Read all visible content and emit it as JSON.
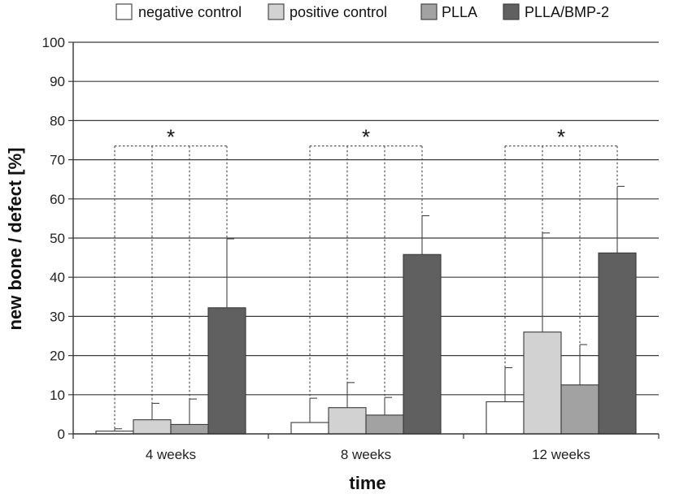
{
  "chart_data": {
    "type": "bar",
    "title": "",
    "xlabel": "time",
    "ylabel": "new bone / defect [%]",
    "ylim": [
      0,
      100
    ],
    "yticks": [
      0,
      10,
      20,
      30,
      40,
      50,
      60,
      70,
      80,
      90,
      100
    ],
    "grid": true,
    "legend_position": "top",
    "categories": [
      "4 weeks",
      "8 weeks",
      "12 weeks"
    ],
    "series": [
      {
        "name": "negative control",
        "color": "#ffffff",
        "values": [
          0.7,
          2.9,
          8.2
        ],
        "errors": [
          0.6,
          6.2,
          8.7
        ]
      },
      {
        "name": "positive control",
        "color": "#d2d2d2",
        "values": [
          3.6,
          6.7,
          26.0
        ],
        "errors": [
          4.2,
          6.4,
          25.3
        ]
      },
      {
        "name": "PLLA",
        "color": "#a2a2a2",
        "values": [
          2.4,
          4.8,
          12.5
        ],
        "errors": [
          6.5,
          4.5,
          10.3
        ]
      },
      {
        "name": "PLLA/BMP-2",
        "color": "#606060",
        "values": [
          32.2,
          45.8,
          46.2
        ],
        "errors": [
          17.6,
          9.9,
          17.0
        ]
      }
    ],
    "significance": [
      {
        "category": "4 weeks",
        "label": "*",
        "level": 73.5
      },
      {
        "category": "8 weeks",
        "label": "*",
        "level": 73.5
      },
      {
        "category": "12 weeks",
        "label": "*",
        "level": 73.5
      }
    ]
  }
}
